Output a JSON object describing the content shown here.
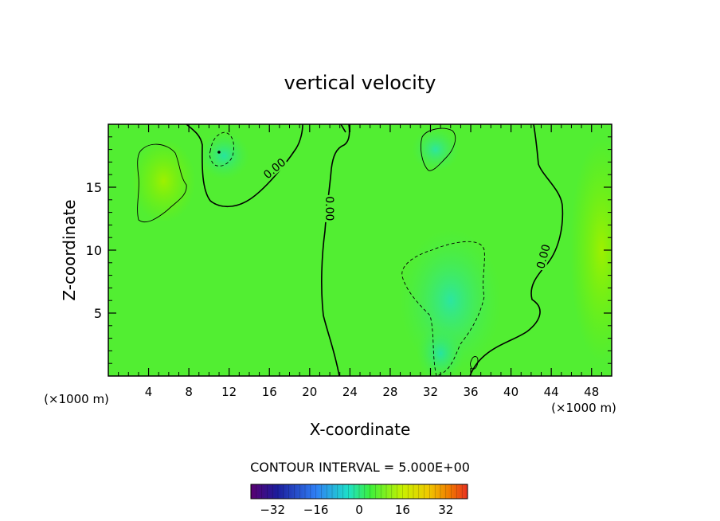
{
  "chart_data": {
    "type": "heatmap",
    "title": "vertical velocity",
    "xlabel": "X-coordinate",
    "ylabel": "Z-coordinate",
    "x_unit_label": "(×1000 m)",
    "x_unit_label_left": "(×1000 m)",
    "xlim": [
      0,
      50
    ],
    "ylim": [
      0,
      20
    ],
    "x_ticks": [
      4,
      8,
      12,
      16,
      20,
      24,
      28,
      32,
      36,
      40,
      44,
      48
    ],
    "y_ticks": [
      5,
      10,
      15
    ],
    "contour_interval_label": "CONTOUR INTERVAL = 5.000E+00",
    "contour_label": "0.00",
    "colorbar": {
      "range": [
        -40,
        40
      ],
      "ticks": [
        -32,
        -16,
        0,
        16,
        32
      ],
      "tick_labels": [
        "−32",
        "−16",
        "0",
        "16",
        "32"
      ]
    },
    "regions": [
      {
        "name": "updraft",
        "x": 5.5,
        "z": 15.5,
        "value": 4
      },
      {
        "name": "downdraft",
        "x": 11.5,
        "z": 17.5,
        "value": -6
      },
      {
        "name": "downdraft",
        "x": 34,
        "z": 6,
        "value": -5
      },
      {
        "name": "downdraft",
        "x": 33,
        "z": 1.5,
        "value": -7
      },
      {
        "name": "downdraft",
        "x": 32.5,
        "z": 18,
        "value": -2
      }
    ],
    "zero_contours": [
      {
        "label": "0.00",
        "x": 16.5,
        "z": 16.5,
        "angle": -40
      },
      {
        "label": "0.00",
        "x": 22,
        "z": 13.3,
        "angle": 90
      },
      {
        "label": "0.00",
        "x": 43.2,
        "z": 9.5,
        "angle": -75
      }
    ]
  }
}
